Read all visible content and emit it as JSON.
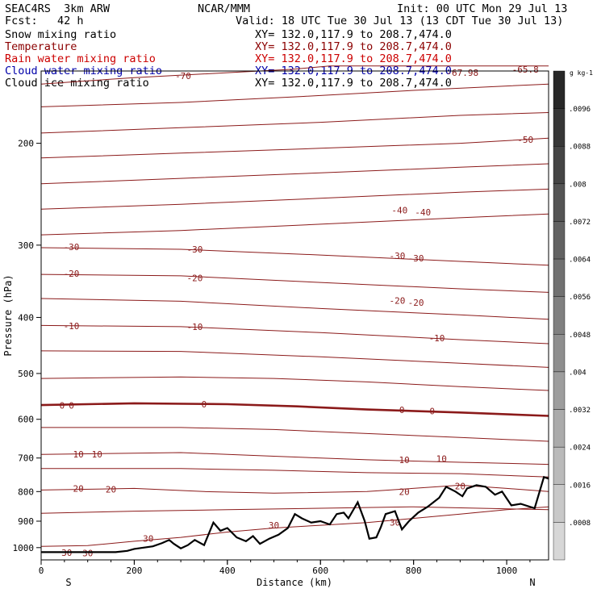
{
  "header": {
    "model": "SEAC4RS  3km ARW",
    "org": "NCAR/MMM",
    "init": "Init: 00 UTC Mon 29 Jul 13",
    "fcst": "Fcst:   42 h",
    "valid": "Valid: 18 UTC Tue 30 Jul 13 (13 CDT Tue 30 Jul 13)",
    "xy": "XY= 132.0,117.9 to 208.7,474.0"
  },
  "fields": [
    {
      "name": "Snow mixing ratio",
      "color": "#000000"
    },
    {
      "name": "Temperature",
      "color": "#8b0000"
    },
    {
      "name": "Rain water mixing ratio",
      "color": "#cc0000"
    },
    {
      "name": "Cloud water mixing ratio",
      "color": "#0000aa"
    },
    {
      "name": "Cloud ice mixing ratio",
      "color": "#000000"
    }
  ],
  "chart_data": {
    "type": "line",
    "xlabel": "Distance (km)",
    "ylabel": "Pressure (hPa)",
    "xlim": [
      0,
      1090
    ],
    "ylim": [
      150,
      1050
    ],
    "y_log": true,
    "x_ticks": [
      0,
      200,
      400,
      600,
      800,
      1000
    ],
    "y_ticks": [
      200,
      300,
      400,
      500,
      600,
      700,
      800,
      900,
      1000
    ],
    "x_end_labels": {
      "left": "S",
      "right": "N"
    },
    "isotherm_interval_c": 5,
    "isotherms": [
      {
        "t": -70,
        "p": [
          [
            0,
            158
          ],
          [
            200,
            154
          ],
          [
            400,
            151
          ],
          [
            540,
            149
          ],
          [
            620,
            147
          ],
          [
            700,
            147
          ],
          [
            1090,
            147
          ]
        ],
        "labels": [
          [
            305,
            153,
            "-70"
          ]
        ]
      },
      {
        "t": -65,
        "p": [
          [
            0,
            173
          ],
          [
            300,
            170
          ],
          [
            560,
            166
          ],
          [
            800,
            162
          ],
          [
            1090,
            158
          ]
        ],
        "labels": [
          [
            1040,
            149,
            "-65.8"
          ],
          [
            905,
            151,
            "-67.98"
          ]
        ]
      },
      {
        "t": -60,
        "p": [
          [
            0,
            192
          ],
          [
            300,
            188
          ],
          [
            600,
            184
          ],
          [
            900,
            179
          ],
          [
            1090,
            177
          ]
        ],
        "labels": []
      },
      {
        "t": -55,
        "p": [
          [
            0,
            212
          ],
          [
            300,
            208
          ],
          [
            600,
            204
          ],
          [
            900,
            200
          ],
          [
            1090,
            196
          ]
        ],
        "labels": [
          [
            1040,
            197,
            "-50"
          ]
        ]
      },
      {
        "t": -50,
        "p": [
          [
            0,
            235
          ],
          [
            300,
            230
          ],
          [
            600,
            225
          ],
          [
            900,
            220
          ],
          [
            1090,
            217
          ]
        ],
        "labels": []
      },
      {
        "t": -45,
        "p": [
          [
            0,
            260
          ],
          [
            300,
            255
          ],
          [
            600,
            249
          ],
          [
            900,
            243
          ],
          [
            1090,
            240
          ]
        ],
        "labels": [
          [
            770,
            261,
            "-40"
          ],
          [
            820,
            263,
            "-40"
          ]
        ]
      },
      {
        "t": -40,
        "p": [
          [
            0,
            288
          ],
          [
            300,
            283
          ],
          [
            600,
            276
          ],
          [
            900,
            269
          ],
          [
            1090,
            265
          ]
        ],
        "labels": []
      },
      {
        "t": -35,
        "p": [
          [
            0,
            303
          ],
          [
            300,
            305
          ],
          [
            600,
            312
          ],
          [
            900,
            320
          ],
          [
            1090,
            325
          ]
        ],
        "labels": [
          [
            65,
            302,
            "-30"
          ],
          [
            330,
            305,
            "-30"
          ],
          [
            765,
            313,
            "-30"
          ],
          [
            805,
            316,
            "-30"
          ]
        ]
      },
      {
        "t": -30,
        "p": [
          [
            0,
            337
          ],
          [
            300,
            339
          ],
          [
            600,
            348
          ],
          [
            900,
            357
          ],
          [
            1090,
            362
          ]
        ],
        "labels": [
          [
            65,
            336,
            "-20"
          ],
          [
            330,
            342,
            "-20"
          ],
          [
            765,
            374,
            "-20"
          ],
          [
            805,
            377,
            "-20"
          ]
        ]
      },
      {
        "t": -25,
        "p": [
          [
            0,
            371
          ],
          [
            300,
            375
          ],
          [
            600,
            386
          ],
          [
            900,
            396
          ],
          [
            1090,
            403
          ]
        ],
        "labels": []
      },
      {
        "t": -20,
        "p": [
          [
            0,
            413
          ],
          [
            300,
            415
          ],
          [
            600,
            425
          ],
          [
            900,
            437
          ],
          [
            1090,
            444
          ]
        ],
        "labels": [
          [
            65,
            414,
            "-10"
          ],
          [
            330,
            415,
            "-10"
          ],
          [
            850,
            434,
            "-10"
          ]
        ]
      },
      {
        "t": -15,
        "p": [
          [
            0,
            457
          ],
          [
            300,
            458
          ],
          [
            600,
            468
          ],
          [
            900,
            480
          ],
          [
            1090,
            488
          ]
        ],
        "labels": []
      },
      {
        "t": -10,
        "p": [
          [
            0,
            510
          ],
          [
            300,
            507
          ],
          [
            500,
            510
          ],
          [
            700,
            517
          ],
          [
            900,
            527
          ],
          [
            1090,
            535
          ]
        ],
        "labels": []
      },
      {
        "t": 0,
        "bold": true,
        "p": [
          [
            0,
            567
          ],
          [
            200,
            563
          ],
          [
            400,
            565
          ],
          [
            550,
            570
          ],
          [
            700,
            577
          ],
          [
            900,
            584
          ],
          [
            1090,
            592
          ]
        ],
        "labels": [
          [
            45,
            568,
            "0"
          ],
          [
            65,
            568,
            "0"
          ],
          [
            350,
            565,
            "0"
          ],
          [
            775,
            578,
            "0"
          ],
          [
            840,
            581,
            "0"
          ]
        ]
      },
      {
        "t": 5,
        "p": [
          [
            0,
            620
          ],
          [
            300,
            620
          ],
          [
            500,
            625
          ],
          [
            700,
            635
          ],
          [
            900,
            645
          ],
          [
            1090,
            655
          ]
        ],
        "labels": []
      },
      {
        "t": 10,
        "p": [
          [
            0,
            690
          ],
          [
            300,
            685
          ],
          [
            500,
            695
          ],
          [
            700,
            705
          ],
          [
            900,
            712
          ],
          [
            1090,
            718
          ]
        ],
        "labels": [
          [
            80,
            690,
            "10"
          ],
          [
            120,
            690,
            "10"
          ],
          [
            780,
            705,
            "10"
          ],
          [
            860,
            702,
            "10"
          ]
        ]
      },
      {
        "t": 15,
        "p": [
          [
            0,
            730
          ],
          [
            300,
            730
          ],
          [
            500,
            735
          ],
          [
            700,
            742
          ],
          [
            900,
            745
          ],
          [
            1090,
            755
          ]
        ],
        "labels": []
      },
      {
        "t": 20,
        "p": [
          [
            0,
            795
          ],
          [
            200,
            790
          ],
          [
            350,
            800
          ],
          [
            500,
            805
          ],
          [
            700,
            800
          ],
          [
            900,
            780
          ],
          [
            1000,
            790
          ],
          [
            1090,
            800
          ]
        ],
        "labels": [
          [
            80,
            790,
            "20"
          ],
          [
            150,
            793,
            "20"
          ],
          [
            780,
            800,
            "20"
          ],
          [
            900,
            783,
            "20"
          ]
        ]
      },
      {
        "t": 25,
        "p": [
          [
            0,
            872
          ],
          [
            200,
            865
          ],
          [
            400,
            860
          ],
          [
            600,
            855
          ],
          [
            800,
            850
          ],
          [
            1090,
            860
          ]
        ],
        "labels": []
      },
      {
        "t": 30,
        "p": [
          [
            0,
            995
          ],
          [
            100,
            992
          ],
          [
            200,
            975
          ],
          [
            300,
            960
          ],
          [
            400,
            940
          ],
          [
            500,
            925
          ],
          [
            600,
            915
          ],
          [
            700,
            905
          ],
          [
            800,
            890
          ],
          [
            900,
            875
          ],
          [
            1000,
            860
          ],
          [
            1090,
            850
          ]
        ],
        "labels": [
          [
            55,
            1020,
            "30"
          ],
          [
            100,
            1022,
            "30"
          ],
          [
            230,
            965,
            "30"
          ],
          [
            500,
            914,
            "30"
          ],
          [
            760,
            905,
            "30"
          ]
        ]
      }
    ],
    "terrain_p": [
      [
        0,
        1018
      ],
      [
        160,
        1018
      ],
      [
        185,
        1013
      ],
      [
        200,
        1005
      ],
      [
        240,
        995
      ],
      [
        260,
        982
      ],
      [
        275,
        970
      ],
      [
        285,
        985
      ],
      [
        300,
        1003
      ],
      [
        315,
        990
      ],
      [
        330,
        970
      ],
      [
        350,
        990
      ],
      [
        370,
        905
      ],
      [
        385,
        935
      ],
      [
        400,
        925
      ],
      [
        420,
        960
      ],
      [
        440,
        975
      ],
      [
        455,
        955
      ],
      [
        470,
        985
      ],
      [
        490,
        965
      ],
      [
        510,
        950
      ],
      [
        530,
        925
      ],
      [
        545,
        875
      ],
      [
        560,
        890
      ],
      [
        580,
        905
      ],
      [
        600,
        900
      ],
      [
        620,
        912
      ],
      [
        635,
        875
      ],
      [
        650,
        870
      ],
      [
        660,
        890
      ],
      [
        680,
        835
      ],
      [
        695,
        900
      ],
      [
        705,
        965
      ],
      [
        720,
        960
      ],
      [
        730,
        920
      ],
      [
        740,
        875
      ],
      [
        760,
        865
      ],
      [
        775,
        930
      ],
      [
        790,
        900
      ],
      [
        810,
        870
      ],
      [
        830,
        850
      ],
      [
        855,
        820
      ],
      [
        870,
        785
      ],
      [
        890,
        800
      ],
      [
        905,
        815
      ],
      [
        915,
        790
      ],
      [
        935,
        780
      ],
      [
        955,
        785
      ],
      [
        975,
        810
      ],
      [
        990,
        800
      ],
      [
        1010,
        845
      ],
      [
        1030,
        840
      ],
      [
        1060,
        855
      ],
      [
        1080,
        755
      ],
      [
        1090,
        760
      ]
    ]
  },
  "colorbar": {
    "unit_label": "g kg-1",
    "min": 0.0008,
    "max": 0.0096,
    "step": 0.0008,
    "tick_labels": [
      ".0096",
      ".0088",
      ".008",
      ".0072",
      ".0064",
      ".0056",
      ".0048",
      ".004",
      ".0032",
      ".0024",
      ".0016",
      ".0008"
    ]
  }
}
